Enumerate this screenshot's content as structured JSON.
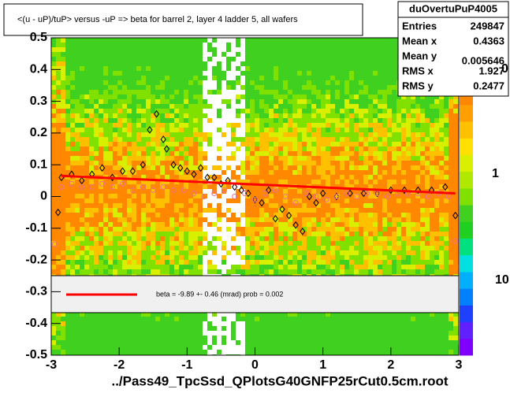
{
  "chart_data": {
    "type": "scatter",
    "title": "<(u - uP)/tuP> versus  -uP => beta for barrel 2, layer 4 ladder 5, all wafers",
    "x_label": "../Pass49_TpcSsd_QPlotsG40GNFP25rCut0.5cm.root",
    "xlim": [
      -3,
      3
    ],
    "xticks": [
      -3,
      -2,
      -1,
      0,
      1,
      2,
      3
    ],
    "ylim": [
      -0.5,
      0.5
    ],
    "yticks": [
      -0.5,
      -0.4,
      -0.3,
      -0.2,
      -0.1,
      0,
      0.1,
      0.2,
      0.3,
      0.4,
      0.5
    ],
    "zaxis_labels": [
      "0",
      "1",
      "10"
    ],
    "stats": {
      "name": "duOvertuPuP4005",
      "rows": [
        {
          "label": "Entries",
          "value": 249847
        },
        {
          "label": "Mean x",
          "value": 0.4363
        },
        {
          "label": "Mean y",
          "value": 0.005646
        },
        {
          "label": "RMS x",
          "value": 1.927
        },
        {
          "label": "RMS y",
          "value": 0.2477
        }
      ]
    },
    "legend": "beta =   -9.89 +-  0.46 (mrad) prob = 0.002",
    "series": [
      {
        "name": "profile",
        "color": "#000000",
        "x": [
          -2.9,
          -2.85,
          -2.7,
          -2.55,
          -2.4,
          -2.25,
          -2.1,
          -1.95,
          -1.8,
          -1.65,
          -1.55,
          -1.45,
          -1.35,
          -1.3,
          -1.2,
          -1.1,
          -1.0,
          -0.9,
          -0.8,
          -0.7,
          -0.6,
          -0.5,
          -0.4,
          -0.3,
          -0.2,
          -0.1,
          0,
          0.1,
          0.2,
          0.3,
          0.4,
          0.5,
          0.6,
          0.7,
          0.8,
          0.9,
          1.0,
          1.2,
          1.4,
          1.6,
          1.8,
          2.0,
          2.2,
          2.4,
          2.6,
          2.8,
          2.95
        ],
        "values": [
          -0.05,
          0.06,
          0.07,
          0.05,
          0.07,
          0.09,
          0.06,
          0.08,
          0.08,
          0.1,
          0.21,
          0.26,
          0.18,
          0.15,
          0.1,
          0.09,
          0.08,
          0.07,
          0.09,
          0.06,
          0.06,
          0.04,
          0.05,
          0.03,
          0.02,
          0.01,
          -0.01,
          -0.02,
          0.02,
          -0.07,
          -0.04,
          -0.06,
          -0.09,
          -0.11,
          0.0,
          -0.02,
          0.01,
          0.0,
          0.01,
          0.01,
          0.01,
          0.02,
          0.02,
          0.02,
          0.02,
          0.03,
          -0.06
        ]
      },
      {
        "name": "profile-2",
        "color": "#e8709a",
        "x": [
          -2.95,
          -2.85,
          -2.7,
          -2.55,
          -2.4,
          -2.25,
          -2.1,
          -1.95,
          -1.8,
          -1.65,
          -1.5,
          -1.35,
          -1.2,
          -1.05,
          -0.9,
          -0.75,
          -0.6,
          -0.45,
          -0.3,
          -0.15,
          0,
          0.15,
          0.3,
          0.45,
          0.6,
          0.75,
          0.9,
          1.05,
          1.2,
          1.35,
          1.5,
          1.65,
          1.8,
          1.95,
          2.1,
          2.25,
          2.4,
          2.55,
          2.7,
          2.85,
          2.95
        ],
        "values": [
          -0.15,
          0.03,
          0.04,
          0.03,
          0.03,
          0.04,
          0.03,
          0.04,
          0.02,
          0.03,
          0.02,
          0.03,
          0.02,
          0.02,
          0.01,
          0.0,
          0.01,
          0.02,
          0.0,
          0.01,
          -0.01,
          0.01,
          0.02,
          0.0,
          -0.02,
          0.01,
          0.0,
          -0.01,
          0.0,
          0.01,
          0.0,
          0.01,
          0.01,
          0.0,
          0.01,
          0.01,
          0.01,
          0.0,
          0.01,
          0.0,
          -0.14
        ]
      },
      {
        "name": "fit",
        "color": "#ff0000",
        "x": [
          -2.85,
          2.95
        ],
        "values": [
          0.065,
          0.01
        ]
      }
    ]
  }
}
